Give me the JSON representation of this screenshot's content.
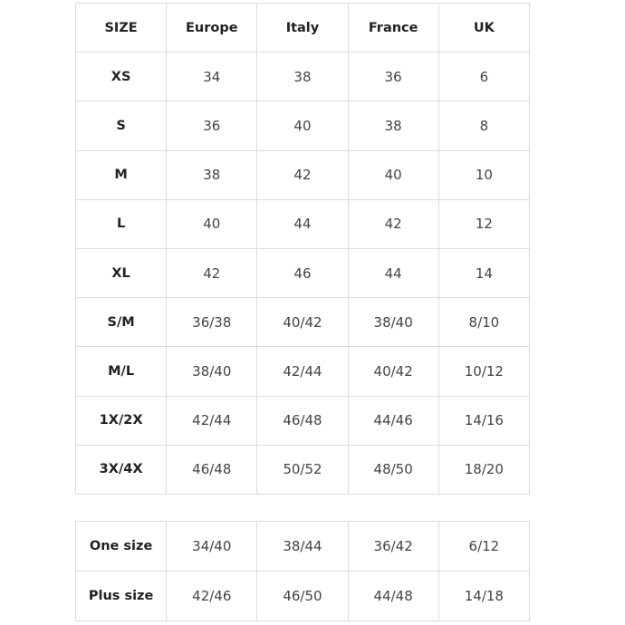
{
  "table": {
    "header": [
      "SIZE",
      "Europe",
      "Italy",
      "France",
      "UK"
    ],
    "rows": [
      [
        "XS",
        "34",
        "38",
        "36",
        "6"
      ],
      [
        "S",
        "36",
        "40",
        "38",
        "8"
      ],
      [
        "M",
        "38",
        "42",
        "40",
        "10"
      ],
      [
        "L",
        "40",
        "44",
        "42",
        "12"
      ],
      [
        "XL",
        "42",
        "46",
        "44",
        "14"
      ],
      [
        "S/M",
        "36/38",
        "40/42",
        "38/40",
        "8/10"
      ],
      [
        "M/L",
        "38/40",
        "42/44",
        "40/42",
        "10/12"
      ],
      [
        "1X/2X",
        "42/44",
        "46/48",
        "44/46",
        "14/16"
      ],
      [
        "3X/4X",
        "46/48",
        "50/52",
        "48/50",
        "18/20"
      ]
    ]
  },
  "table2": {
    "rows": [
      [
        "One size",
        "34/40",
        "38/44",
        "36/42",
        "6/12"
      ],
      [
        "Plus size",
        "42/46",
        "46/50",
        "44/48",
        "14/18"
      ]
    ]
  }
}
